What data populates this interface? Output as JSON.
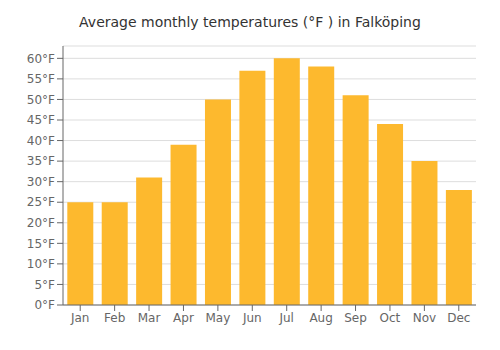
{
  "chart_data": {
    "type": "bar",
    "title": "Average monthly temperatures (°F ) in Falköping",
    "categories": [
      "Jan",
      "Feb",
      "Mar",
      "Apr",
      "May",
      "Jun",
      "Jul",
      "Aug",
      "Sep",
      "Oct",
      "Nov",
      "Dec"
    ],
    "values": [
      25,
      25,
      31,
      39,
      50,
      57,
      60,
      58,
      51,
      44,
      35,
      28
    ],
    "color": "#FDB92E",
    "ylim": [
      0,
      63
    ],
    "yticks": [
      {
        "value": 0,
        "label": "0°F"
      },
      {
        "value": 5,
        "label": "5°F"
      },
      {
        "value": 10,
        "label": "10°F"
      },
      {
        "value": 15,
        "label": "15°F"
      },
      {
        "value": 20,
        "label": "20°F"
      },
      {
        "value": 25,
        "label": "25°F"
      },
      {
        "value": 30,
        "label": "30°F"
      },
      {
        "value": 35,
        "label": "35°F"
      },
      {
        "value": 40,
        "label": "40°F"
      },
      {
        "value": 45,
        "label": "45°F"
      },
      {
        "value": 50,
        "label": "50°F"
      },
      {
        "value": 55,
        "label": "55°F"
      },
      {
        "value": 60,
        "label": "60°F"
      }
    ],
    "grid": true
  }
}
